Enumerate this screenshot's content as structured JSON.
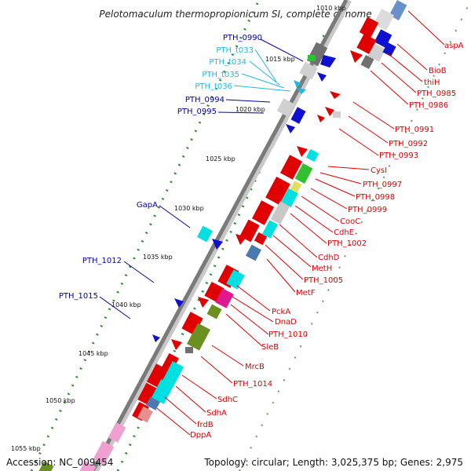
{
  "title": "Pelotomaculum thermopropionicum SI, complete genome",
  "footer": {
    "accession": "Accession: NC_009454",
    "topology": "Topology: circular; Length: 3,025,375 bp; Genes: 2,975"
  },
  "colors": {
    "backbone": "#8a8a8a",
    "tick_dot": "#2e8b2e",
    "label_left": "#0000a8",
    "label_trna": "#20b8e8",
    "label_right": "#e00000"
  },
  "kbp_ticks": [
    "1010 kbp",
    "1015 kbp",
    "1020 kbp",
    "1025 kbp",
    "1030 kbp",
    "1035 kbp",
    "1040 kbp",
    "1045 kbp",
    "1050 kbp",
    "1055 kbp"
  ],
  "labels_left": [
    {
      "text": "PTH_0990",
      "type": "cds"
    },
    {
      "text": "PTH_t033",
      "type": "trna"
    },
    {
      "text": "PTH_t034",
      "type": "trna"
    },
    {
      "text": "PTH_t035",
      "type": "trna"
    },
    {
      "text": "PTH_t036",
      "type": "trna"
    },
    {
      "text": "PTH_0994",
      "type": "cds"
    },
    {
      "text": "PTH_0995",
      "type": "cds"
    },
    {
      "text": "GapA",
      "type": "cds"
    },
    {
      "text": "PTH_1012",
      "type": "cds"
    },
    {
      "text": "PTH_1015",
      "type": "cds"
    }
  ],
  "labels_right": [
    "aspA",
    "BioB",
    "thiH",
    "PTH_0985",
    "PTH_0986",
    "PTH_0991",
    "PTH_0992",
    "PTH_0993",
    "CysI",
    "PTH_0997",
    "PTH_0998",
    "PTH_0999",
    "CooC",
    "CdhE",
    "PTH_1002",
    "CdhD",
    "MetH",
    "PTH_1005",
    "MetF",
    "PckA",
    "DnaD",
    "PTH_1010",
    "SleB",
    "MrcB",
    "PTH_1014",
    "SdhC",
    "SdhA",
    "frdB",
    "DppA"
  ]
}
